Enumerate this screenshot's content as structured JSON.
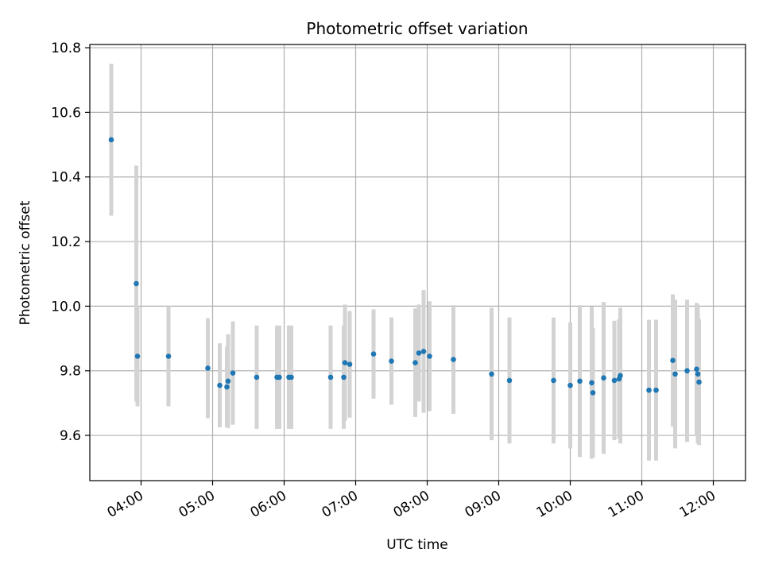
{
  "chart_data": {
    "type": "scatter",
    "title": "Photometric offset variation",
    "xlabel": "UTC time",
    "ylabel": "Photometric offset",
    "grid": true,
    "xlim": [
      "03:17",
      "12:27"
    ],
    "ylim": [
      9.46,
      10.81
    ],
    "x_ticks": [
      "04:00",
      "05:00",
      "06:00",
      "07:00",
      "08:00",
      "09:00",
      "10:00",
      "11:00",
      "12:00"
    ],
    "y_ticks": [
      "9.6",
      "9.8",
      "10.0",
      "10.2",
      "10.4",
      "10.6",
      "10.8"
    ],
    "colors": {
      "point": "#1f77b4",
      "errorbar": "#d3d3d3",
      "grid": "#b0b0b0"
    },
    "series": [
      {
        "x": [
          "03:35",
          "03:56",
          "03:57",
          "04:23",
          "04:56",
          "05:06",
          "05:12",
          "05:13",
          "05:17",
          "05:37",
          "05:54",
          "05:56",
          "06:04",
          "06:06",
          "06:39",
          "06:50",
          "06:51",
          "06:55",
          "07:15",
          "07:30",
          "07:50",
          "07:53",
          "07:57",
          "08:02",
          "08:22",
          "08:54",
          "09:09",
          "09:46",
          "10:00",
          "10:08",
          "10:18",
          "10:19",
          "10:28",
          "10:37",
          "10:41",
          "10:42",
          "11:06",
          "11:12",
          "11:26",
          "11:28",
          "11:38",
          "11:46",
          "11:47",
          "11:48"
        ],
        "y": [
          10.515,
          10.07,
          9.845,
          9.845,
          9.808,
          9.755,
          9.75,
          9.768,
          9.793,
          9.78,
          9.78,
          9.78,
          9.78,
          9.78,
          9.78,
          9.78,
          9.825,
          9.82,
          9.852,
          9.83,
          9.825,
          9.855,
          9.86,
          9.845,
          9.835,
          9.79,
          9.77,
          9.77,
          9.755,
          9.768,
          9.763,
          9.732,
          9.778,
          9.77,
          9.775,
          9.785,
          9.74,
          9.74,
          9.832,
          9.79,
          9.8,
          9.805,
          9.79,
          9.765
        ],
        "err": [
          0.235,
          0.365,
          0.155,
          0.155,
          0.155,
          0.13,
          0.125,
          0.145,
          0.16,
          0.16,
          0.16,
          0.16,
          0.16,
          0.16,
          0.16,
          0.16,
          0.18,
          0.165,
          0.138,
          0.135,
          0.168,
          0.15,
          0.19,
          0.17,
          0.168,
          0.205,
          0.195,
          0.195,
          0.195,
          0.235,
          0.235,
          0.2,
          0.235,
          0.185,
          0.185,
          0.21,
          0.218,
          0.218,
          0.205,
          0.23,
          0.22,
          0.205,
          0.215,
          0.195
        ]
      }
    ]
  }
}
